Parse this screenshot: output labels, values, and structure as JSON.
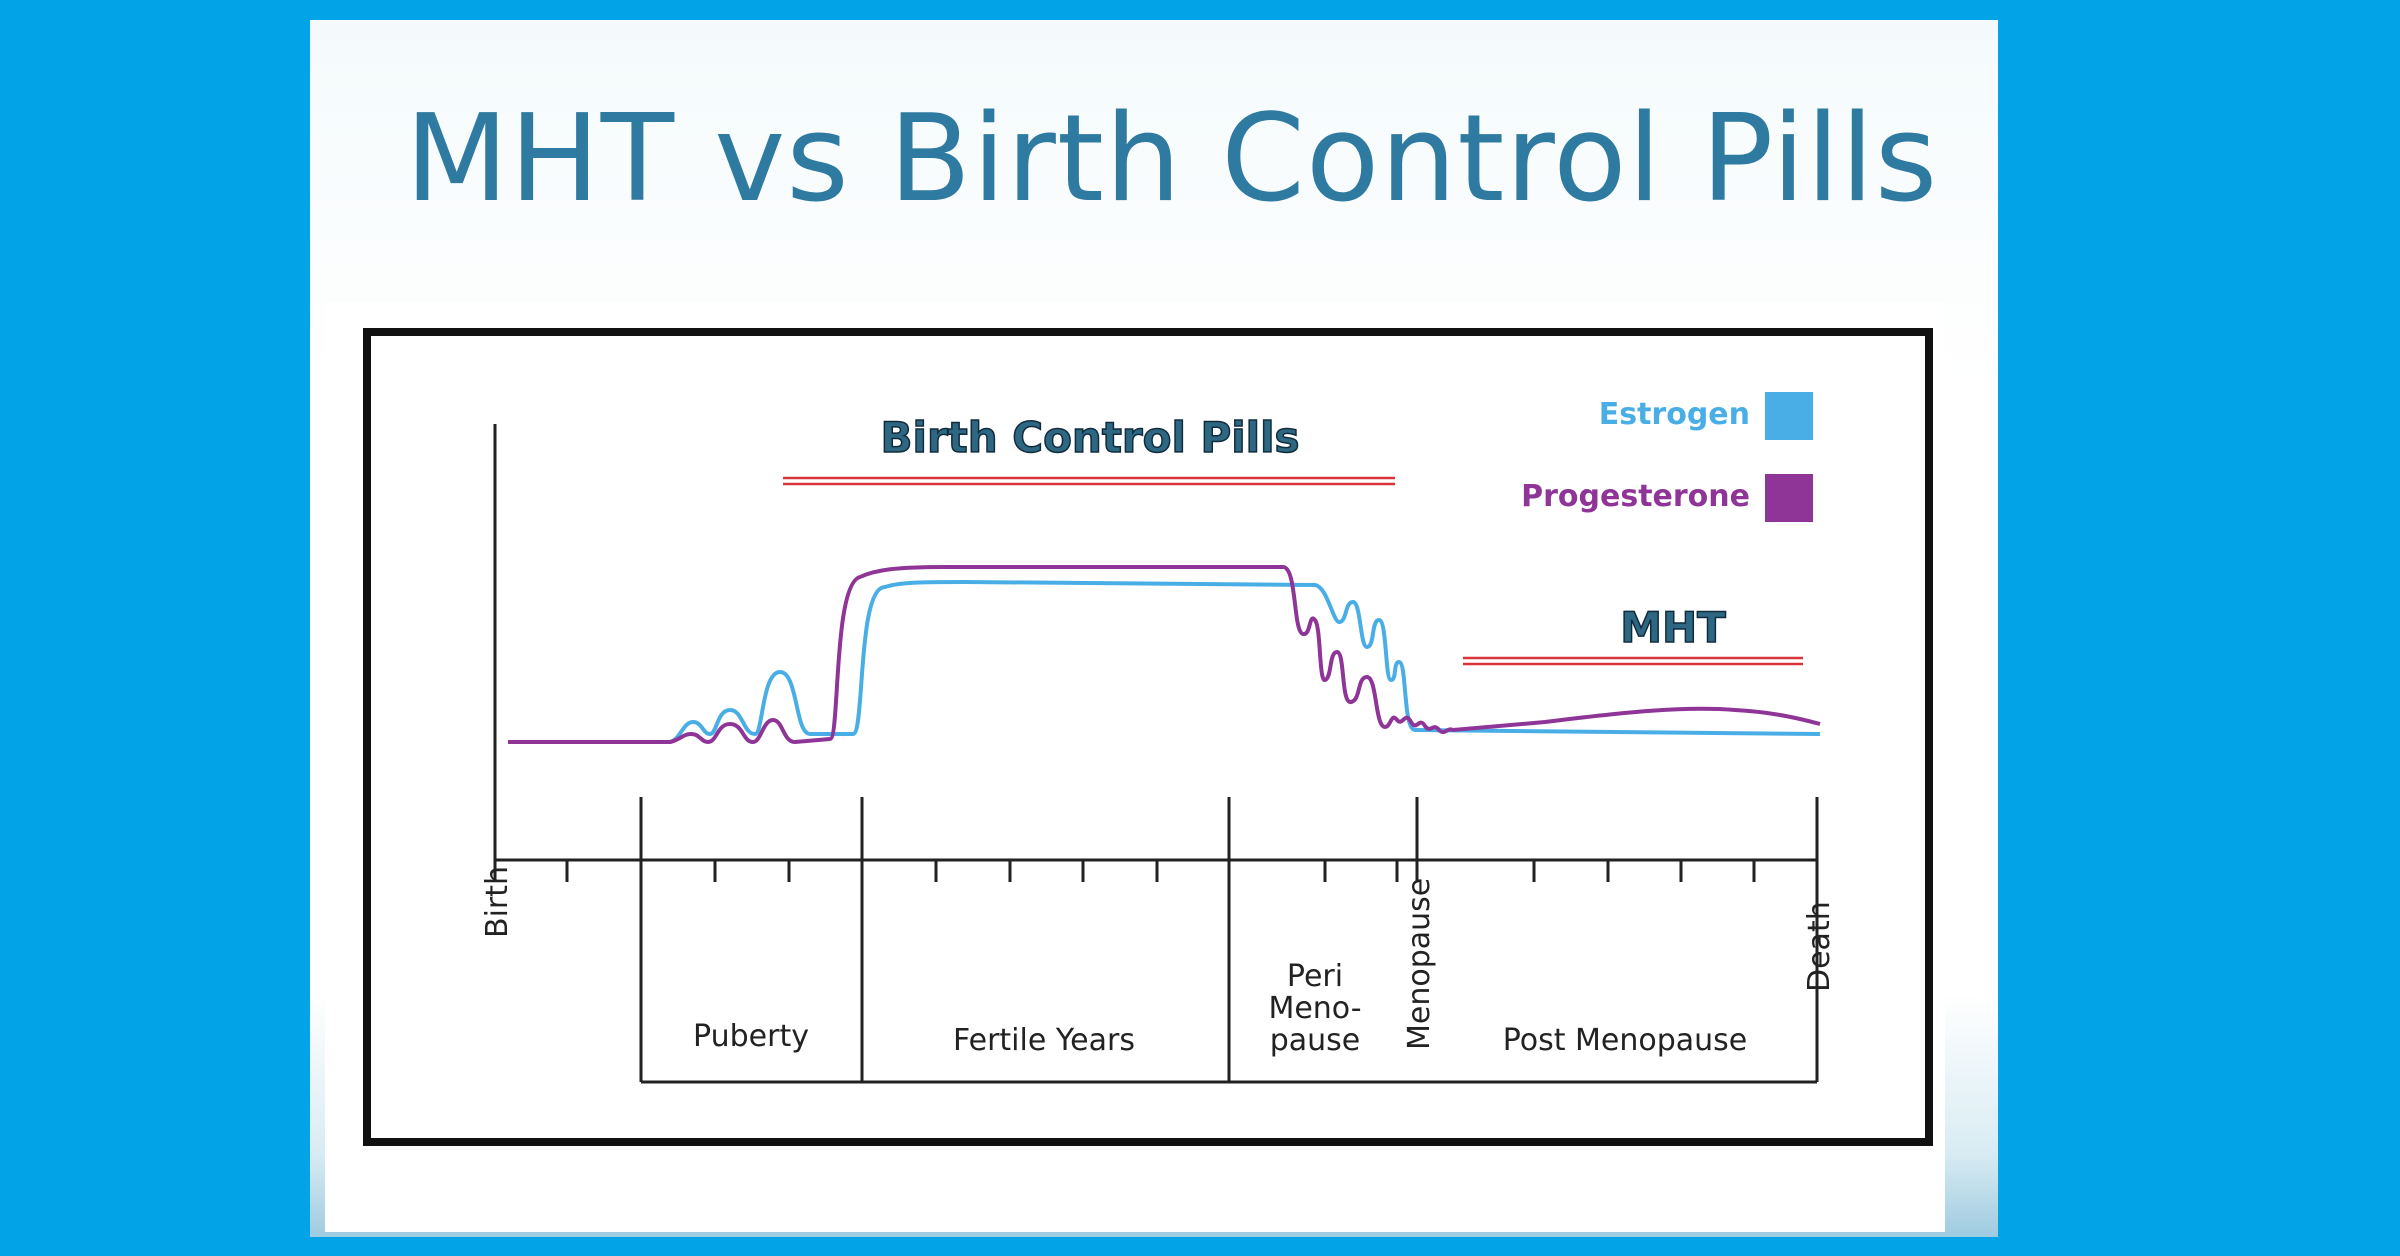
{
  "slide": {
    "title": "MHT vs Birth Control Pills"
  },
  "legend": [
    {
      "label": "Estrogen",
      "color": "#4aaee6"
    },
    {
      "label": "Progesterone",
      "color": "#8e3597"
    }
  ],
  "annotations": {
    "birth_control_label": "Birth Control Pills",
    "mht_label": "MHT",
    "underline_color": "#d9333b"
  },
  "timeline": {
    "endpoints": {
      "start": "Birth",
      "menopause": "Menopause",
      "end": "Death"
    },
    "stages": {
      "puberty": "Puberty",
      "fertile": "Fertile Years",
      "peri_line1": "Peri",
      "peri_line2": "Meno-",
      "peri_line3": "pause",
      "post": "Post Menopause"
    }
  }
}
